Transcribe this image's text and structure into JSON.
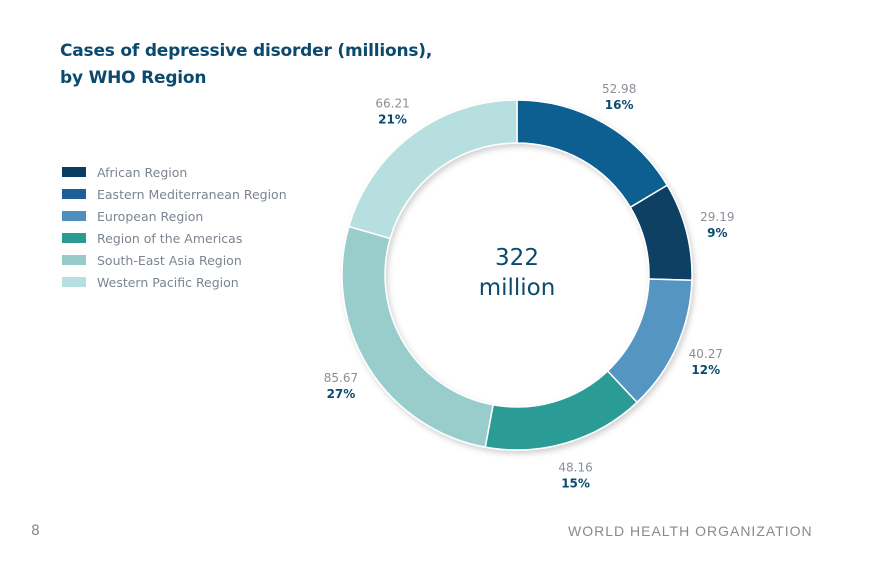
{
  "chart_data": {
    "type": "pie",
    "title": "Cases of depressive disorder (millions), by WHO Region",
    "title_lines": [
      "Cases of depressive disorder (millions),",
      "by WHO Region"
    ],
    "center_label": [
      "322",
      "million"
    ],
    "legend_placement": "left",
    "legend": [
      {
        "name": "African Region",
        "color": "#0a3d62"
      },
      {
        "name": "Eastern Mediterranean Region",
        "color": "#1f5f99"
      },
      {
        "name": "European Region",
        "color": "#4f8fc0"
      },
      {
        "name": "Region of the Americas",
        "color": "#2a9a93"
      },
      {
        "name": "South-East Asia Region",
        "color": "#96cbca"
      },
      {
        "name": "Western Pacific Region",
        "color": "#b8dfdf"
      }
    ],
    "slices": [
      {
        "name": "Eastern Mediterranean Region",
        "value": 52.98,
        "value_label": "52.98",
        "percent": "16%",
        "color": "#0e5f92"
      },
      {
        "name": "African Region",
        "value": 29.19,
        "value_label": "29.19",
        "percent": "9%",
        "color": "#083f63"
      },
      {
        "name": "European Region",
        "value": 40.27,
        "value_label": "40.27",
        "percent": "12%",
        "color": "#5495c2"
      },
      {
        "name": "Region of the Americas",
        "value": 48.16,
        "value_label": "48.16",
        "percent": "15%",
        "color": "#2c9c95"
      },
      {
        "name": "South-East Asia Region",
        "value": 85.67,
        "value_label": "85.67",
        "percent": "27%",
        "color": "#98cdcc"
      },
      {
        "name": "Western Pacific Region",
        "value": 66.21,
        "value_label": "66.21",
        "percent": "21%",
        "color": "#b8dfdf"
      }
    ]
  },
  "footer": {
    "page_number": "8",
    "organization": "WORLD HEALTH ORGANIZATION"
  }
}
